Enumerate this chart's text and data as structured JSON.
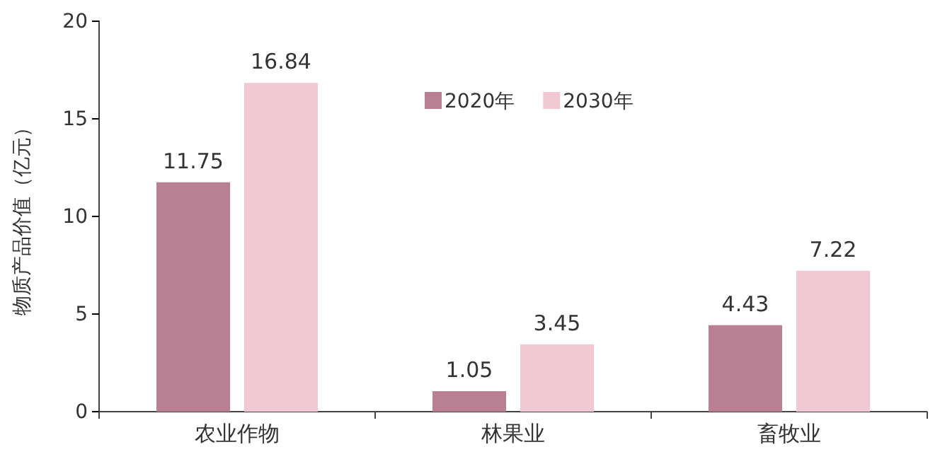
{
  "chart_data": {
    "type": "bar",
    "ylabel": "物质产品价值（亿元）",
    "categories": [
      "农业作物",
      "林果业",
      "畜牧业"
    ],
    "series": [
      {
        "name": "2020年",
        "color": "#b97f92",
        "values": [
          11.75,
          1.05,
          4.43
        ]
      },
      {
        "name": "2030年",
        "color": "#f1c9d5",
        "values": [
          16.84,
          3.45,
          7.22
        ]
      }
    ],
    "ylim": [
      0,
      20
    ],
    "yticks": [
      0,
      5,
      10,
      15,
      20
    ],
    "grid": false,
    "legend": "top",
    "data_labels": true
  }
}
